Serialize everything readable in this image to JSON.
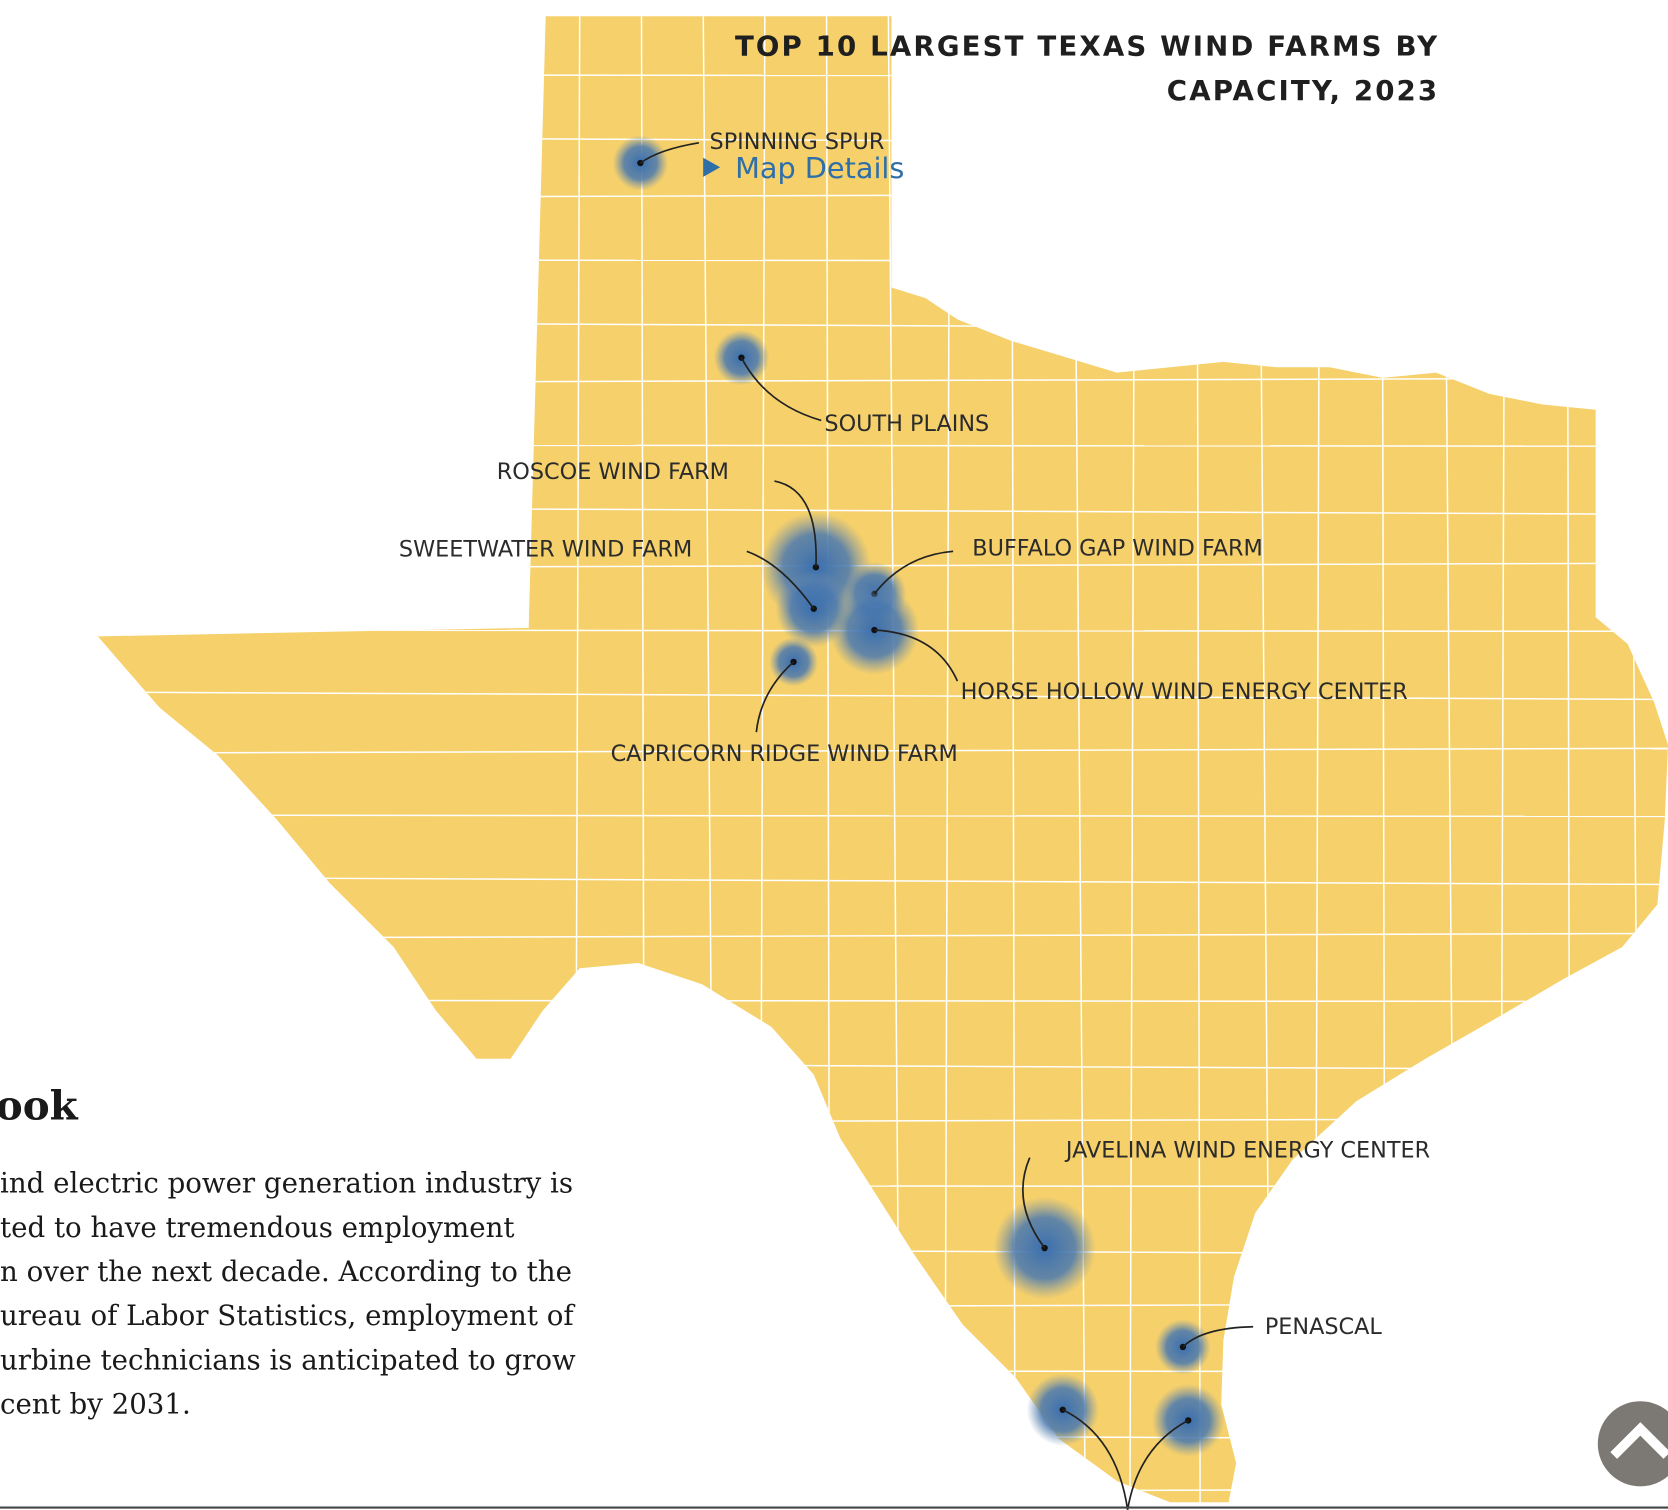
{
  "map_title": [
    "TOP 10 LARGEST TEXAS WIND FARMS BY",
    "CAPACITY, 2023"
  ],
  "map_details_link": "Map Details",
  "farm_labels": [
    "SPINNING SPUR",
    "SOUTH PLAINS",
    "ROSCOE WIND FARM",
    "SWEETWATER WIND FARM",
    "BUFFALO GAP WIND FARM",
    "HORSE HOLLOW WIND ENERGY CENTER",
    "CAPRICORN RIDGE WIND FARM",
    "JAVELINA WIND ENERGY CENTER",
    "PENASCAL"
  ],
  "article": {
    "heading": "ook",
    "paragraph": [
      "ind electric power generation industry is",
      "ted to have tremendous employment",
      "n over the next decade. According to the",
      "ureau of Labor Statistics, employment of",
      "urbine technicians is anticipated to grow",
      "cent by 2031."
    ]
  }
}
